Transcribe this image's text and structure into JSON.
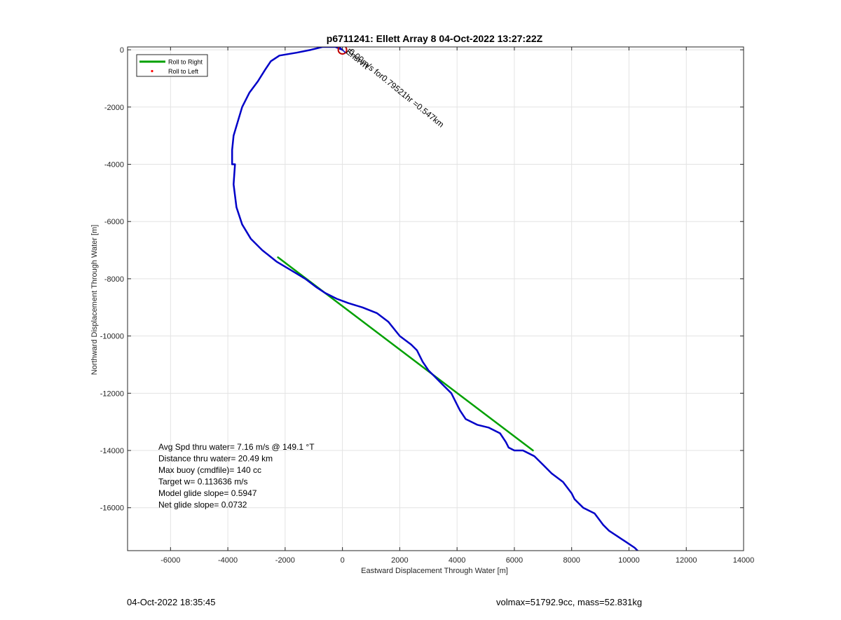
{
  "chart_data": {
    "type": "line",
    "title": "p6711241: Ellett Array 8 04-Oct-2022 13:27:22Z",
    "xlabel": "Eastward Displacement Through Water [m]",
    "ylabel": "Northward Displacement Through Water [m]",
    "xlim": [
      -7500,
      14000
    ],
    "ylim": [
      -17500,
      100
    ],
    "xticks": [
      -6000,
      -4000,
      -2000,
      0,
      2000,
      4000,
      6000,
      8000,
      10000,
      12000,
      14000
    ],
    "yticks": [
      0,
      -2000,
      -4000,
      -6000,
      -8000,
      -10000,
      -12000,
      -14000,
      -16000
    ],
    "grid": true,
    "legend_position": "top-left",
    "legend": [
      {
        "label": "Roll to Right",
        "color": "#00a000",
        "style": "line"
      },
      {
        "label": "Roll to Left",
        "color": "#ff0000",
        "style": "dot"
      }
    ],
    "series": [
      {
        "name": "Roll to Right",
        "style": "straight segment",
        "color": "#00a000",
        "x": [
          -2250,
          6650
        ],
        "y": [
          -7250,
          -14000
        ]
      },
      {
        "style": "track",
        "color": "#0000c8",
        "x": [
          0,
          -250,
          -700,
          -1100,
          -1600,
          -2200,
          -2500,
          -2700,
          -2950,
          -3250,
          -3500,
          -3650,
          -3800,
          -3850,
          -3850,
          -3750,
          -3800,
          -3700,
          -3500,
          -3200,
          -2800,
          -2300,
          -1800,
          -1300,
          -900,
          -600,
          -200,
          200,
          700,
          1200,
          1600,
          2000,
          2400,
          2600,
          2800,
          3000,
          3200,
          3500,
          3800,
          4000,
          4100,
          4300,
          4700,
          5100,
          5500,
          5700,
          5800,
          6000,
          6300,
          6700,
          7000,
          7300,
          7700,
          8000,
          8100,
          8200,
          8400,
          8800,
          9100,
          9300,
          9600,
          9900,
          10200,
          10500
        ],
        "y": [
          0,
          100,
          100,
          0,
          -100,
          -200,
          -400,
          -700,
          -1100,
          -1500,
          -2000,
          -2500,
          -3000,
          -3500,
          -4000,
          -4000,
          -4700,
          -5500,
          -6100,
          -6600,
          -7000,
          -7400,
          -7700,
          -8000,
          -8300,
          -8500,
          -8700,
          -8850,
          -9000,
          -9200,
          -9500,
          -10000,
          -10300,
          -10500,
          -10900,
          -11200,
          -11400,
          -11700,
          -12000,
          -12400,
          -12600,
          -12900,
          -13100,
          -13200,
          -13400,
          -13700,
          -13900,
          -14000,
          -14000,
          -14200,
          -14500,
          -14800,
          -15100,
          -15500,
          -15700,
          -15800,
          -16000,
          -16200,
          -16600,
          -16800,
          -17000,
          -17200,
          -17400,
          -17700
        ]
      }
    ],
    "markers": [
      {
        "type": "circle",
        "color": "#c00000",
        "x": 0,
        "y": 0
      }
    ],
    "annotations": [
      {
        "text": "0.00m/s for0.79521hr =0.547km",
        "x": 200,
        "y": -100,
        "rotation_deg": 39
      },
      {
        "text": "Ensrvrt",
        "x": 100,
        "y": -100,
        "rotation_deg": 39
      }
    ],
    "stats": [
      "Avg Spd thru water=  7.16 m/s @ 149.1 °T",
      "Distance thru water= 20.49 km",
      "Max buoy (cmdfile)= 140 cc",
      "Target w= 0.113636 m/s",
      "Model glide slope= 0.5947",
      "Net glide slope= 0.0732"
    ]
  },
  "footer": {
    "left": "04-Oct-2022 18:35:45",
    "right": "volmax=51792.9cc, mass=52.831kg"
  }
}
